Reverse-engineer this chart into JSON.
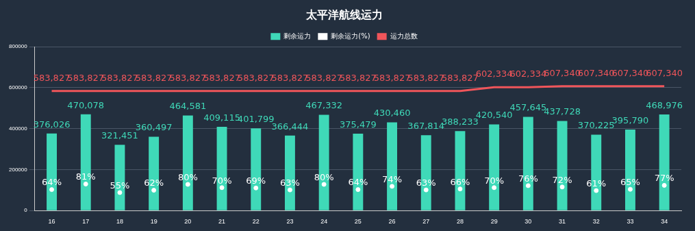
{
  "chart_data": {
    "type": "bar",
    "title": "太平洋航线运力",
    "categories": [
      "16",
      "17",
      "18",
      "19",
      "20",
      "21",
      "22",
      "23",
      "24",
      "25",
      "26",
      "27",
      "28",
      "29",
      "30",
      "31",
      "32",
      "33",
      "34"
    ],
    "series": [
      {
        "name": "剩余运力",
        "color": "#3fd9b8",
        "values": [
          376026,
          470078,
          321451,
          360497,
          464581,
          409115,
          401799,
          366444,
          467332,
          375479,
          430460,
          367814,
          388233,
          420540,
          457645,
          437728,
          370225,
          395790,
          468976
        ],
        "value_labels": [
          "376,026",
          "470,078",
          "321,451",
          "360,497",
          "464,581",
          "409,115",
          "401,799",
          "366,444",
          "467,332",
          "375,479",
          "430,460",
          "367,814",
          "388,233",
          "420,540",
          "457,645",
          "437,728",
          "370,225",
          "395,790",
          "468,976"
        ]
      },
      {
        "name": "剩余运力(%)",
        "type": "scatter",
        "axis": "y2",
        "marker": "circle",
        "color": "#ffffff",
        "values": [
          64,
          81,
          55,
          62,
          80,
          70,
          69,
          63,
          80,
          64,
          74,
          63,
          66,
          70,
          76,
          72,
          61,
          65,
          77
        ],
        "value_labels": [
          "64%",
          "81%",
          "55%",
          "62%",
          "80%",
          "70%",
          "69%",
          "63%",
          "80%",
          "64%",
          "74%",
          "63%",
          "66%",
          "70%",
          "76%",
          "72%",
          "61%",
          "65%",
          "77%"
        ]
      },
      {
        "name": "运力总数",
        "type": "line",
        "marker": "none",
        "color": "#f0555a",
        "values": [
          583827,
          583827,
          583827,
          583827,
          583827,
          583827,
          583827,
          583827,
          583827,
          583827,
          583827,
          583827,
          583827,
          602334,
          602334,
          607340,
          607340,
          607340,
          607340
        ],
        "value_labels": [
          "583,827",
          "583,827",
          "583,827",
          "583,827",
          "583,827",
          "583,827",
          "583,827",
          "583,827",
          "583,827",
          "583,827",
          "583,827",
          "583,827",
          "583,827",
          "602,334",
          "602,334",
          "607,340",
          "607,340",
          "607,340",
          "607,340"
        ]
      }
    ],
    "ylim": [
      0,
      800000
    ],
    "yticks": [
      0,
      200000,
      400000,
      600000,
      800000
    ],
    "y2lim": [
      0,
      500
    ],
    "grid": "y",
    "legend": "top"
  }
}
